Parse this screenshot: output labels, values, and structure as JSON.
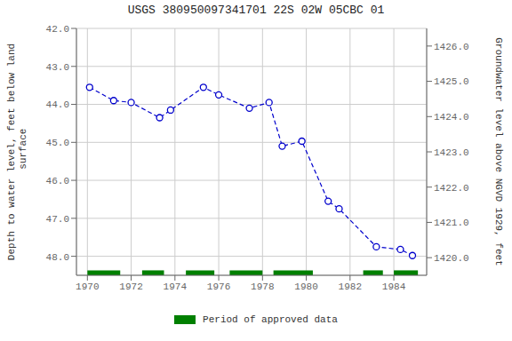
{
  "chart_data": {
    "type": "line",
    "title": "USGS 380950097341701 22S 02W 05CBC 01",
    "ylabel": "Depth to water level, feet below land\n surface",
    "y2label": "Groundwater level above NGVD 1929, feet",
    "x": [
      1970.1,
      1971.2,
      1972.0,
      1973.3,
      1973.8,
      1975.3,
      1976.0,
      1977.4,
      1978.3,
      1978.9,
      1979.8,
      1981.0,
      1981.5,
      1983.2,
      1984.3,
      1984.85
    ],
    "values": [
      43.55,
      43.9,
      43.95,
      44.35,
      44.15,
      43.55,
      43.75,
      44.1,
      43.95,
      45.1,
      44.97,
      46.55,
      46.75,
      47.75,
      47.82,
      47.98
    ],
    "color": "#0000CC",
    "line_style": "dashed",
    "marker": "circle",
    "xlim": [
      1969.5,
      1985.5
    ],
    "xticks": [
      1970,
      1972,
      1974,
      1976,
      1978,
      1980,
      1982,
      1984
    ],
    "ylim": [
      48.5,
      42.0
    ],
    "yticks": [
      {
        "value": 42.0,
        "label": "42.0"
      },
      {
        "value": 43.0,
        "label": "43.0"
      },
      {
        "value": 44.0,
        "label": "44.0"
      },
      {
        "value": 45.0,
        "label": "45.0"
      },
      {
        "value": 46.0,
        "label": "46.0"
      },
      {
        "value": 47.0,
        "label": "47.0"
      },
      {
        "value": 48.0,
        "label": "48.0"
      }
    ],
    "y2lim": [
      1419.5,
      1426.5
    ],
    "y2ticks": [
      {
        "value": 1420.0,
        "label": "1420.0"
      },
      {
        "value": 1421.0,
        "label": "1421.0"
      },
      {
        "value": 1422.0,
        "label": "1422.0"
      },
      {
        "value": 1423.0,
        "label": "1423.0"
      },
      {
        "value": 1424.0,
        "label": "1424.0"
      },
      {
        "value": 1425.0,
        "label": "1425.0"
      },
      {
        "value": 1426.0,
        "label": "1426.0"
      }
    ],
    "grid": true,
    "legend": "bottom",
    "periods": {
      "name": "Period of approved data",
      "color": "#008000",
      "ranges": [
        [
          1970.0,
          1971.5
        ],
        [
          1972.5,
          1973.5
        ],
        [
          1974.5,
          1975.8
        ],
        [
          1976.5,
          1978.0
        ],
        [
          1978.5,
          1980.3
        ],
        [
          1982.6,
          1983.5
        ],
        [
          1984.0,
          1985.1
        ]
      ]
    }
  }
}
